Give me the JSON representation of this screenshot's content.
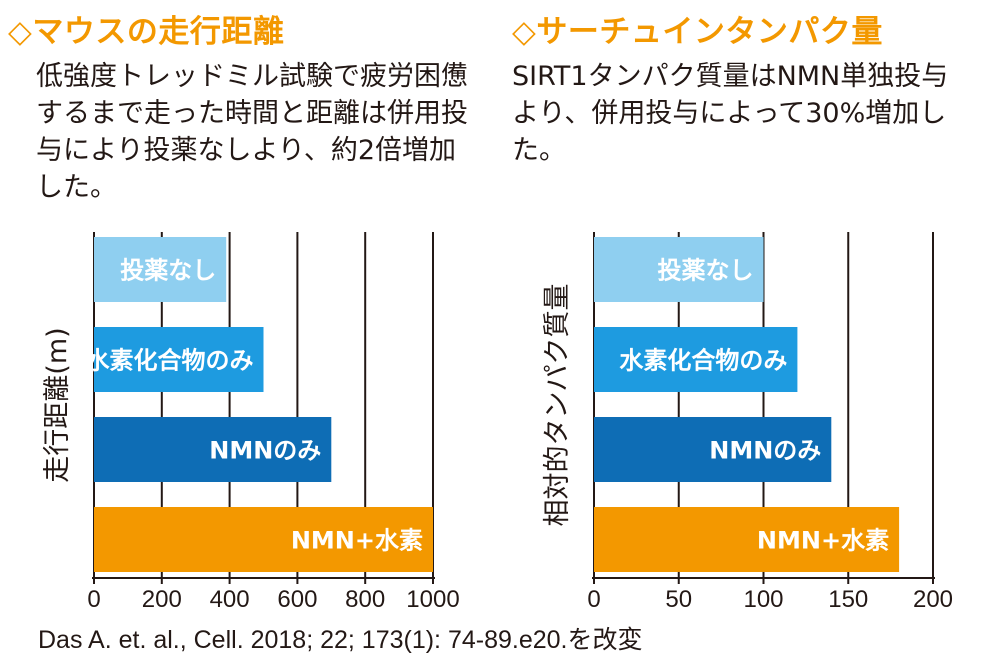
{
  "left_panel": {
    "title": "◇マウスの走行距離",
    "description": "低強度トレッドミル試験で疲労困憊するまで走った時間と距離は併用投与により投薬なしより、約2倍増加した。"
  },
  "right_panel": {
    "title": "◇サーチュインタンパク量",
    "description": "SIRT1タンパク質量はNMN単独投与より、併用投与によって30%増加した。"
  },
  "citation": "Das A. et. al., Cell. 2018; 22; 173(1): 74-89.e20.を改変",
  "chart_data": [
    {
      "type": "bar",
      "orientation": "horizontal",
      "ylabel": "走行距離(m)",
      "categories": [
        "投薬なし",
        "水素化合物のみ",
        "NMNのみ",
        "NMN+水素"
      ],
      "values": [
        390,
        500,
        700,
        1000
      ],
      "colors": [
        "#8fcff0",
        "#1e9be0",
        "#0e6db5",
        "#f39800"
      ],
      "xlim": [
        0,
        1000
      ],
      "ticks": [
        0,
        200,
        400,
        600,
        800,
        1000
      ],
      "grid": true
    },
    {
      "type": "bar",
      "orientation": "horizontal",
      "ylabel": "相対的タンパク質量",
      "categories": [
        "投薬なし",
        "水素化合物のみ",
        "NMNのみ",
        "NMN+水素"
      ],
      "values": [
        100,
        120,
        140,
        180
      ],
      "colors": [
        "#8fcff0",
        "#1e9be0",
        "#0e6db5",
        "#f39800"
      ],
      "xlim": [
        0,
        200
      ],
      "ticks": [
        0,
        50,
        100,
        150,
        200
      ],
      "grid": true
    }
  ]
}
